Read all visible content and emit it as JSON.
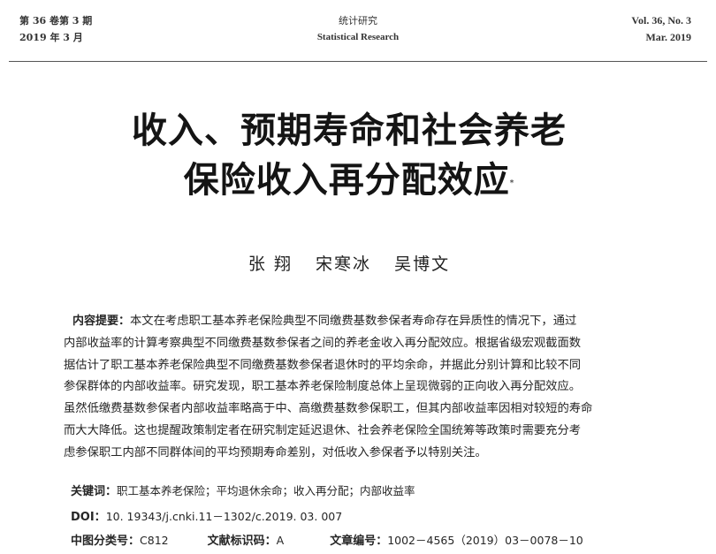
{
  "header": {
    "left_line1": "第 36 卷第 3 期",
    "left_line2": "2019 年 3 月",
    "center_line1": "统计研究",
    "center_line2": "Statistical Research",
    "right_line1": "Vol. 36, No. 3",
    "right_line2": "Mar. 2019"
  },
  "title": {
    "line1": "收入、预期寿命和社会养老",
    "line2": "保险收入再分配效应",
    "footnote_mark": "*"
  },
  "authors": [
    "张 翔",
    "宋寒冰",
    "吴博文"
  ],
  "abstract": {
    "label": "内容提要：",
    "lines": [
      "本文在考虑职工基本养老保险典型不同缴费基数参保者寿命存在异质性的情况下，通过",
      "内部收益率的计算考察典型不同缴费基数参保者之间的养老金收入再分配效应。根据省级宏观截面数",
      "据估计了职工基本养老保险典型不同缴费基数参保者退休时的平均余命，并据此分别计算和比较不同",
      "参保群体的内部收益率。研究发现，职工基本养老保险制度总体上呈现微弱的正向收入再分配效应。",
      "虽然低缴费基数参保者内部收益率略高于中、高缴费基数参保职工，但其内部收益率因相对较短的寿命",
      "而大大降低。这也提醒政策制定者在研究制定延迟退休、社会养老保险全国统筹等政策时需要充分考",
      "虑参保职工内部不同群体间的平均预期寿命差别，对低收入参保者予以特别关注。"
    ]
  },
  "keywords": {
    "label": "关键词：",
    "value": "职工基本养老保险；平均退休余命；收入再分配；内部收益率"
  },
  "doi": {
    "label": "DOI：",
    "value": "10. 19343/j.cnki.11－1302/c.2019. 03. 007"
  },
  "classification": {
    "clc_label": "中图分类号：",
    "clc_value": "C812",
    "doc_label": "文献标识码：",
    "doc_value": "A",
    "article_label": "文章编号：",
    "article_value": "1002－4565（2019）03－0078－10"
  }
}
